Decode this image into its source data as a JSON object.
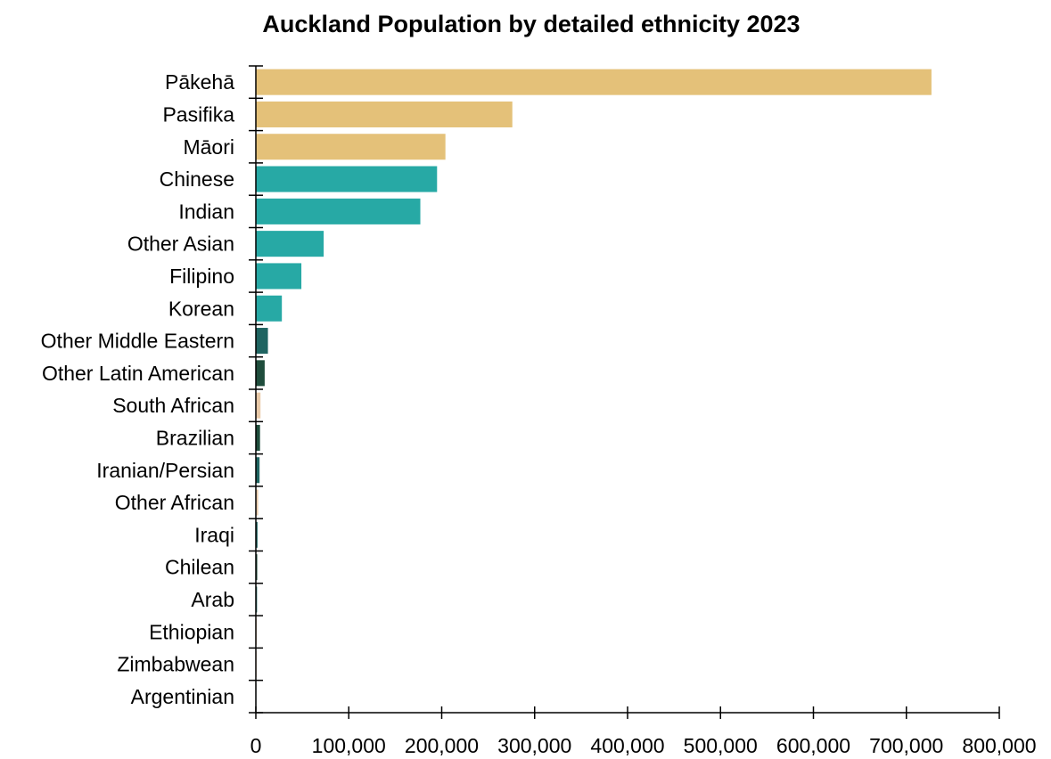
{
  "chart_data": {
    "type": "bar",
    "orientation": "horizontal",
    "title": "Auckland Population by detailed ethnicity 2023",
    "xlabel": "",
    "ylabel": "",
    "xlim": [
      0,
      800000
    ],
    "x_ticks": [
      0,
      100000,
      200000,
      300000,
      400000,
      500000,
      600000,
      700000,
      800000
    ],
    "x_tick_labels": [
      "0",
      "100,000",
      "200,000",
      "300,000",
      "400,000",
      "500,000",
      "600,000",
      "700,000",
      "800,000"
    ],
    "grid": false,
    "categories": [
      "Pākehā",
      "Pasifika",
      "Māori",
      "Chinese",
      "Indian",
      "Other Asian",
      "Filipino",
      "Korean",
      "Other Middle Eastern",
      "Other Latin American",
      "South African",
      "Brazilian",
      "Iranian/Persian",
      "Other African",
      "Iraqi",
      "Chilean",
      "Arab",
      "Ethiopian",
      "Zimbabwean",
      "Argentinian"
    ],
    "values": [
      727000,
      276000,
      204000,
      195000,
      177000,
      73000,
      49000,
      28000,
      13000,
      9500,
      5000,
      4500,
      4000,
      2500,
      1800,
      1500,
      1300,
      1000,
      800,
      600
    ],
    "colors": [
      "#e4c179",
      "#e4c179",
      "#e4c179",
      "#27a9a5",
      "#27a9a5",
      "#27a9a5",
      "#27a9a5",
      "#27a9a5",
      "#1f6461",
      "#1f4d3c",
      "#e8c9a8",
      "#1f4d3c",
      "#1f6461",
      "#e8c9a8",
      "#1f6461",
      "#1f4d3c",
      "#1f6461",
      "#e8c9a8",
      "#e8c9a8",
      "#1f4d3c"
    ]
  }
}
